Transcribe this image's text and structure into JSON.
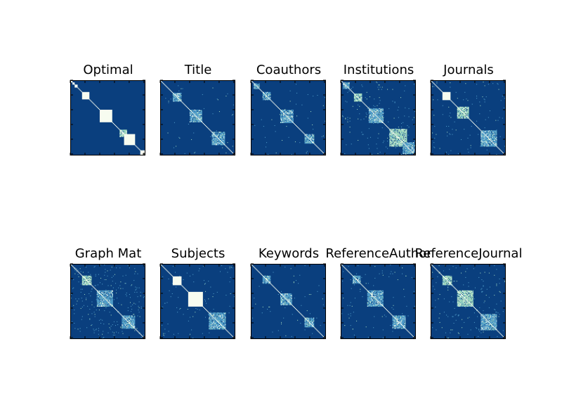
{
  "figure": {
    "colors": {
      "background": "#0a3f7e",
      "mid": "#4f9bc7",
      "light": "#9fd6bd",
      "high": "#f7fcf0",
      "frame": "#000000"
    }
  },
  "chart_data": [
    {
      "type": "heatmap",
      "title": "Optimal",
      "blocks": [
        [
          0,
          3,
          3
        ],
        [
          3,
          6,
          3
        ],
        [
          6,
          10,
          3
        ],
        [
          16,
          26,
          3
        ],
        [
          40,
          57,
          3
        ],
        [
          67,
          77,
          2
        ],
        [
          68,
          70,
          3
        ],
        [
          71,
          73,
          3
        ],
        [
          73,
          88,
          3
        ],
        [
          95,
          102,
          3
        ]
      ],
      "noise": 0
    },
    {
      "type": "heatmap",
      "title": "Title",
      "blocks": [
        [
          17,
          29,
          1
        ],
        [
          40,
          57,
          1
        ],
        [
          70,
          88,
          1
        ]
      ],
      "noise": 0.01
    },
    {
      "type": "heatmap",
      "title": "Coauthors",
      "blocks": [
        [
          4,
          12,
          1
        ],
        [
          16,
          27,
          1
        ],
        [
          40,
          58,
          1
        ],
        [
          73,
          86,
          1
        ]
      ],
      "noise": 0.01
    },
    {
      "type": "heatmap",
      "title": "Institutions",
      "blocks": [
        [
          3,
          12,
          1
        ],
        [
          18,
          29,
          2
        ],
        [
          38,
          58,
          1
        ],
        [
          66,
          90,
          2
        ],
        [
          84,
          100,
          1
        ]
      ],
      "noise": 0.03
    },
    {
      "type": "heatmap",
      "title": "Journals",
      "blocks": [
        [
          16,
          27,
          3
        ],
        [
          36,
          52,
          2
        ],
        [
          68,
          90,
          1
        ]
      ],
      "noise": 0.02
    },
    {
      "type": "heatmap",
      "title": "Graph Mat",
      "blocks": [
        [
          16,
          29,
          2
        ],
        [
          36,
          58,
          1
        ],
        [
          70,
          88,
          1
        ]
      ],
      "noise": 0.05
    },
    {
      "type": "heatmap",
      "title": "Subjects",
      "blocks": [
        [
          17,
          29,
          3
        ],
        [
          38,
          58,
          3
        ],
        [
          66,
          89,
          1
        ]
      ],
      "noise": 0.02
    },
    {
      "type": "heatmap",
      "title": "Keywords",
      "blocks": [
        [
          16,
          27,
          1
        ],
        [
          40,
          56,
          1
        ],
        [
          73,
          86,
          1
        ]
      ],
      "noise": 0.01
    },
    {
      "type": "heatmap",
      "title": "ReferenceAuthor",
      "blocks": [
        [
          16,
          27,
          1
        ],
        [
          36,
          58,
          1
        ],
        [
          70,
          88,
          1
        ]
      ],
      "noise": 0.015
    },
    {
      "type": "heatmap",
      "title": "ReferenceJournal",
      "blocks": [
        [
          16,
          29,
          2
        ],
        [
          36,
          58,
          2
        ],
        [
          68,
          90,
          1
        ]
      ],
      "noise": 0.03
    }
  ]
}
